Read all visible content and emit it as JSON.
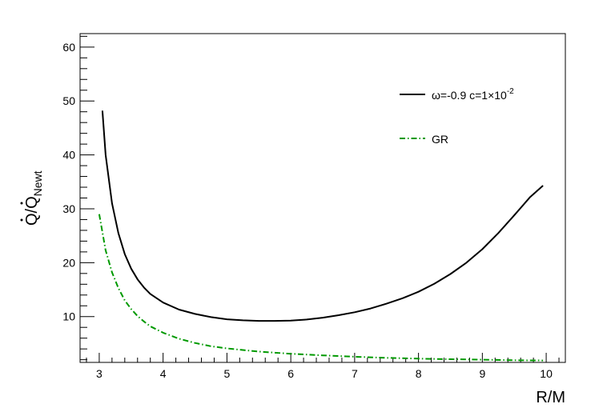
{
  "chart_data": {
    "type": "line",
    "xlabel": "R/M",
    "ylabel": "Q/Q",
    "ylabel_sub": "Newt",
    "xlim": [
      2.7,
      10.3
    ],
    "ylim": [
      1.5,
      62.5
    ],
    "x_ticks": [
      3,
      4,
      5,
      6,
      7,
      8,
      9,
      10
    ],
    "y_ticks": [
      10,
      20,
      30,
      40,
      50,
      60
    ],
    "grid": false,
    "legend_position": "top-right",
    "series": [
      {
        "name": "ω=-0.9 c=1×10",
        "name_sup": "-2",
        "color": "#000000",
        "style": "solid",
        "x": [
          3.05,
          3.1,
          3.2,
          3.3,
          3.4,
          3.5,
          3.6,
          3.7,
          3.8,
          4.0,
          4.25,
          4.5,
          4.75,
          5.0,
          5.25,
          5.5,
          5.75,
          6.0,
          6.25,
          6.5,
          6.75,
          7.0,
          7.25,
          7.5,
          7.75,
          8.0,
          8.25,
          8.5,
          8.75,
          9.0,
          9.25,
          9.5,
          9.75,
          9.95
        ],
        "y": [
          48.2,
          40.0,
          31.0,
          25.5,
          21.6,
          18.9,
          16.9,
          15.4,
          14.2,
          12.6,
          11.3,
          10.5,
          9.9,
          9.5,
          9.3,
          9.2,
          9.2,
          9.25,
          9.45,
          9.8,
          10.25,
          10.8,
          11.5,
          12.4,
          13.4,
          14.6,
          16.1,
          17.9,
          20.0,
          22.5,
          25.5,
          28.8,
          32.2,
          34.3
        ]
      },
      {
        "name": "GR",
        "color": "#009900",
        "style": "dashdot",
        "x": [
          3.0,
          3.1,
          3.2,
          3.3,
          3.4,
          3.5,
          3.6,
          3.7,
          3.8,
          4.0,
          4.25,
          4.5,
          4.75,
          5.0,
          5.5,
          6.0,
          6.5,
          7.0,
          7.5,
          8.0,
          8.5,
          9.0,
          9.5,
          9.95
        ],
        "y": [
          29.0,
          22.3,
          18.2,
          15.3,
          13.0,
          11.4,
          10.1,
          9.1,
          8.2,
          7.0,
          5.9,
          5.1,
          4.5,
          4.1,
          3.5,
          3.1,
          2.8,
          2.55,
          2.35,
          2.2,
          2.1,
          2.0,
          1.9,
          1.85
        ]
      }
    ]
  }
}
